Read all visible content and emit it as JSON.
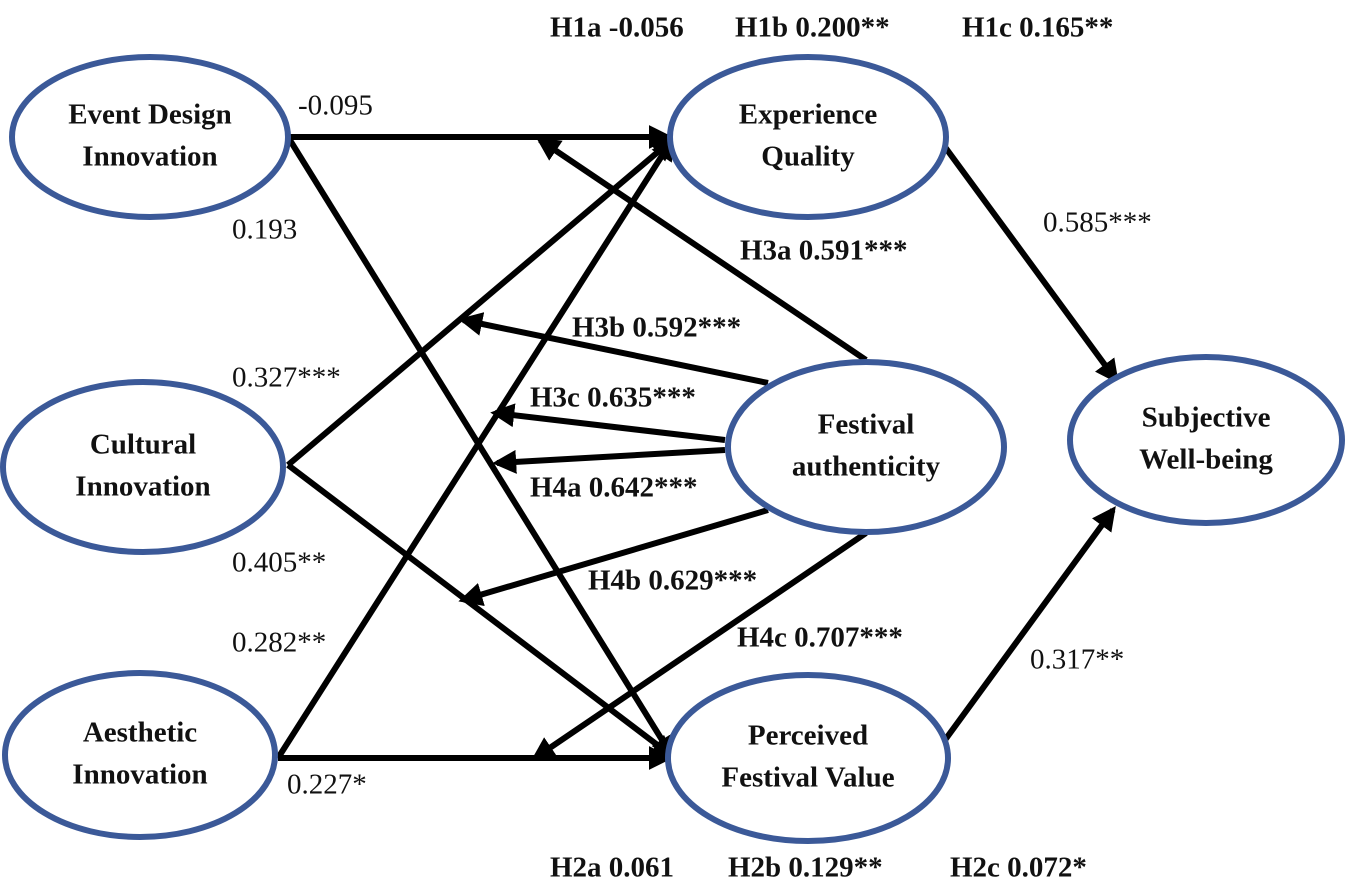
{
  "nodes": [
    {
      "lines": [
        "Event Design",
        "Innovation"
      ]
    },
    {
      "lines": [
        "Cultural",
        "Innovation"
      ]
    },
    {
      "lines": [
        "Aesthetic",
        "Innovation"
      ]
    },
    {
      "lines": [
        "Experience",
        "Quality"
      ]
    },
    {
      "lines": [
        "Festival",
        "authenticity"
      ]
    },
    {
      "lines": [
        "Subjective",
        "Well-being"
      ]
    },
    {
      "lines": [
        "Perceived",
        "Festival Value"
      ]
    }
  ],
  "path_labels": [
    "-0.095",
    "0.193",
    "0.327***",
    "0.405**",
    "0.282**",
    "0.227*",
    "0.585***",
    "0.317**"
  ],
  "hypothesis_labels": [
    "H1a -0.056",
    "H1b 0.200**",
    "H1c 0.165**",
    "H3a 0.591***",
    "H3b 0.592***",
    "H3c 0.635***",
    "H4a 0.642***",
    "H4b 0.629***",
    "H4c 0.707***",
    "H2a 0.061",
    "H2b 0.129**",
    "H2c 0.072*"
  ]
}
